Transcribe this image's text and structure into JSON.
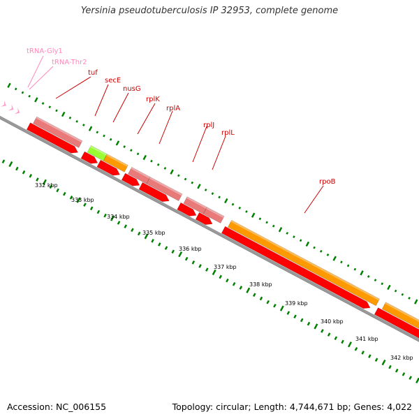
{
  "header": {
    "title": "Yersinia pseudotuberculosis IP 32953, complete genome"
  },
  "footer": {
    "accession": "Accession: NC_006155",
    "summary": "Topology: circular; Length: 4,744,671 bp; Genes: 4,022"
  },
  "colors": {
    "backbone": "#999999",
    "backbone_shadow": "#555555",
    "tick": "#008000",
    "cds_feature": "#ff0000",
    "gene_pink": "#e87a7a",
    "gene_orange": "#ff9900",
    "gene_green": "#99ff33",
    "trna": "#ff99cc",
    "label_red": "#cc0000",
    "label_pink": "#ff88bb"
  },
  "kbp_labels": [
    "332 kbp",
    "333 kbp",
    "334 kbp",
    "335 kbp",
    "336 kbp",
    "337 kbp",
    "338 kbp",
    "339 kbp",
    "340 kbp",
    "341 kbp",
    "342 kbp"
  ],
  "gene_labels": [
    {
      "name": "tRNA-Gly1",
      "type": "trna"
    },
    {
      "name": "tRNA-Thr2",
      "type": "trna"
    },
    {
      "name": "tuf",
      "type": "gene"
    },
    {
      "name": "secE",
      "type": "gene"
    },
    {
      "name": "nusG",
      "type": "gene"
    },
    {
      "name": "rplK",
      "type": "gene"
    },
    {
      "name": "rplA",
      "type": "gene"
    },
    {
      "name": "rplJ",
      "type": "gene"
    },
    {
      "name": "rplL",
      "type": "gene"
    },
    {
      "name": "rpoB",
      "type": "gene"
    }
  ]
}
